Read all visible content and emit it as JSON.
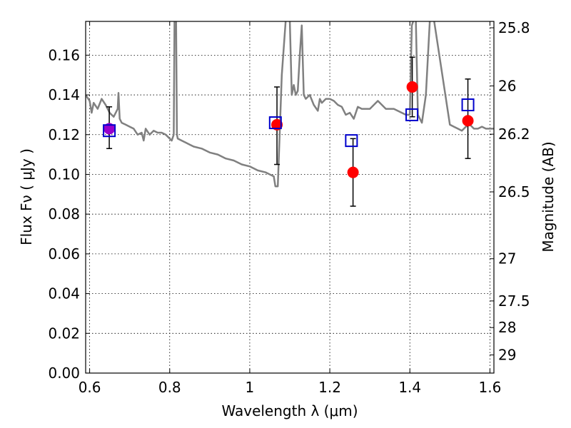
{
  "chart_data": {
    "type": "scatter",
    "title": "",
    "xlabel": "Wavelength λ (μm)",
    "ylabel": "Flux Fν ( μJy )",
    "y2label": "Magnitude (AB)",
    "xlim": [
      0.59,
      1.61
    ],
    "ylim": [
      0.0,
      0.177
    ],
    "grid": true,
    "xticks": [
      0.6,
      0.8,
      1.0,
      1.2,
      1.4,
      1.6
    ],
    "xtick_labels": [
      "0.6",
      "0.8",
      "1",
      "1.2",
      "1.4",
      "1.6"
    ],
    "yticks": [
      0.0,
      0.02,
      0.04,
      0.06,
      0.08,
      0.1,
      0.12,
      0.14,
      0.16
    ],
    "ytick_labels": [
      "0.00",
      "0.02",
      "0.04",
      "0.06",
      "0.08",
      "0.10",
      "0.12",
      "0.14",
      "0.16"
    ],
    "y2ticks": [
      25.8,
      26,
      26.2,
      26.5,
      27,
      27.5,
      28,
      29
    ],
    "y2tick_labels": [
      "25.8",
      "26",
      "26.2",
      "26.5",
      "27",
      "27.5",
      "28",
      "29"
    ],
    "colors": {
      "model": "#808080",
      "observed": "#ff0000",
      "model_photometry": "#0000cc",
      "errorbar": "#000000",
      "overlap": "#9900cc"
    },
    "series": [
      {
        "kind": "line",
        "x": [
          0.59,
          0.6,
          0.605,
          0.61,
          0.62,
          0.63,
          0.64,
          0.65,
          0.66,
          0.67,
          0.672,
          0.675,
          0.68,
          0.69,
          0.7,
          0.71,
          0.72,
          0.73,
          0.735,
          0.74,
          0.75,
          0.76,
          0.77,
          0.78,
          0.79,
          0.8,
          0.805,
          0.81,
          0.812,
          0.814,
          0.816,
          0.818,
          0.82,
          0.83,
          0.84,
          0.85,
          0.86,
          0.88,
          0.9,
          0.92,
          0.94,
          0.96,
          0.98,
          1.0,
          1.02,
          1.04,
          1.06,
          1.064,
          1.07,
          1.08,
          1.09,
          1.1,
          1.105,
          1.11,
          1.115,
          1.12,
          1.125,
          1.13,
          1.135,
          1.14,
          1.15,
          1.16,
          1.17,
          1.175,
          1.18,
          1.19,
          1.2,
          1.21,
          1.22,
          1.23,
          1.24,
          1.25,
          1.26,
          1.27,
          1.28,
          1.3,
          1.31,
          1.32,
          1.33,
          1.34,
          1.36,
          1.38,
          1.39,
          1.4,
          1.405,
          1.41,
          1.415,
          1.42,
          1.43,
          1.44,
          1.45,
          1.46,
          1.5,
          1.51,
          1.52,
          1.53,
          1.54,
          1.55,
          1.56,
          1.57,
          1.58,
          1.59,
          1.6,
          1.61
        ],
        "y": [
          0.14,
          0.137,
          0.131,
          0.136,
          0.133,
          0.138,
          0.135,
          0.131,
          0.129,
          0.133,
          0.141,
          0.128,
          0.126,
          0.125,
          0.124,
          0.123,
          0.12,
          0.121,
          0.117,
          0.123,
          0.12,
          0.122,
          0.121,
          0.121,
          0.12,
          0.118,
          0.117,
          0.12,
          0.178,
          0.178,
          0.178,
          0.12,
          0.118,
          0.117,
          0.116,
          0.115,
          0.114,
          0.113,
          0.111,
          0.11,
          0.108,
          0.107,
          0.105,
          0.104,
          0.102,
          0.101,
          0.099,
          0.094,
          0.094,
          0.15,
          0.178,
          0.178,
          0.14,
          0.145,
          0.14,
          0.142,
          0.16,
          0.175,
          0.14,
          0.138,
          0.14,
          0.135,
          0.132,
          0.138,
          0.136,
          0.138,
          0.138,
          0.137,
          0.135,
          0.134,
          0.13,
          0.131,
          0.128,
          0.134,
          0.133,
          0.133,
          0.135,
          0.137,
          0.135,
          0.133,
          0.133,
          0.131,
          0.13,
          0.13,
          0.175,
          0.178,
          0.178,
          0.13,
          0.126,
          0.14,
          0.178,
          0.178,
          0.125,
          0.124,
          0.123,
          0.122,
          0.124,
          0.125,
          0.123,
          0.123,
          0.124,
          0.123,
          0.123,
          0.123
        ]
      },
      {
        "kind": "observed",
        "x": [
          0.649,
          1.068,
          1.258,
          1.406,
          1.545
        ],
        "y": [
          0.123,
          0.125,
          0.101,
          0.144,
          0.127
        ],
        "err_low": [
          0.113,
          0.105,
          0.084,
          0.129,
          0.108
        ],
        "err_high": [
          0.134,
          0.144,
          0.118,
          0.159,
          0.148
        ]
      },
      {
        "kind": "model_photometry",
        "x": [
          0.649,
          1.064,
          1.254,
          1.405,
          1.545
        ],
        "y": [
          0.122,
          0.126,
          0.117,
          0.13,
          0.135
        ]
      }
    ]
  }
}
